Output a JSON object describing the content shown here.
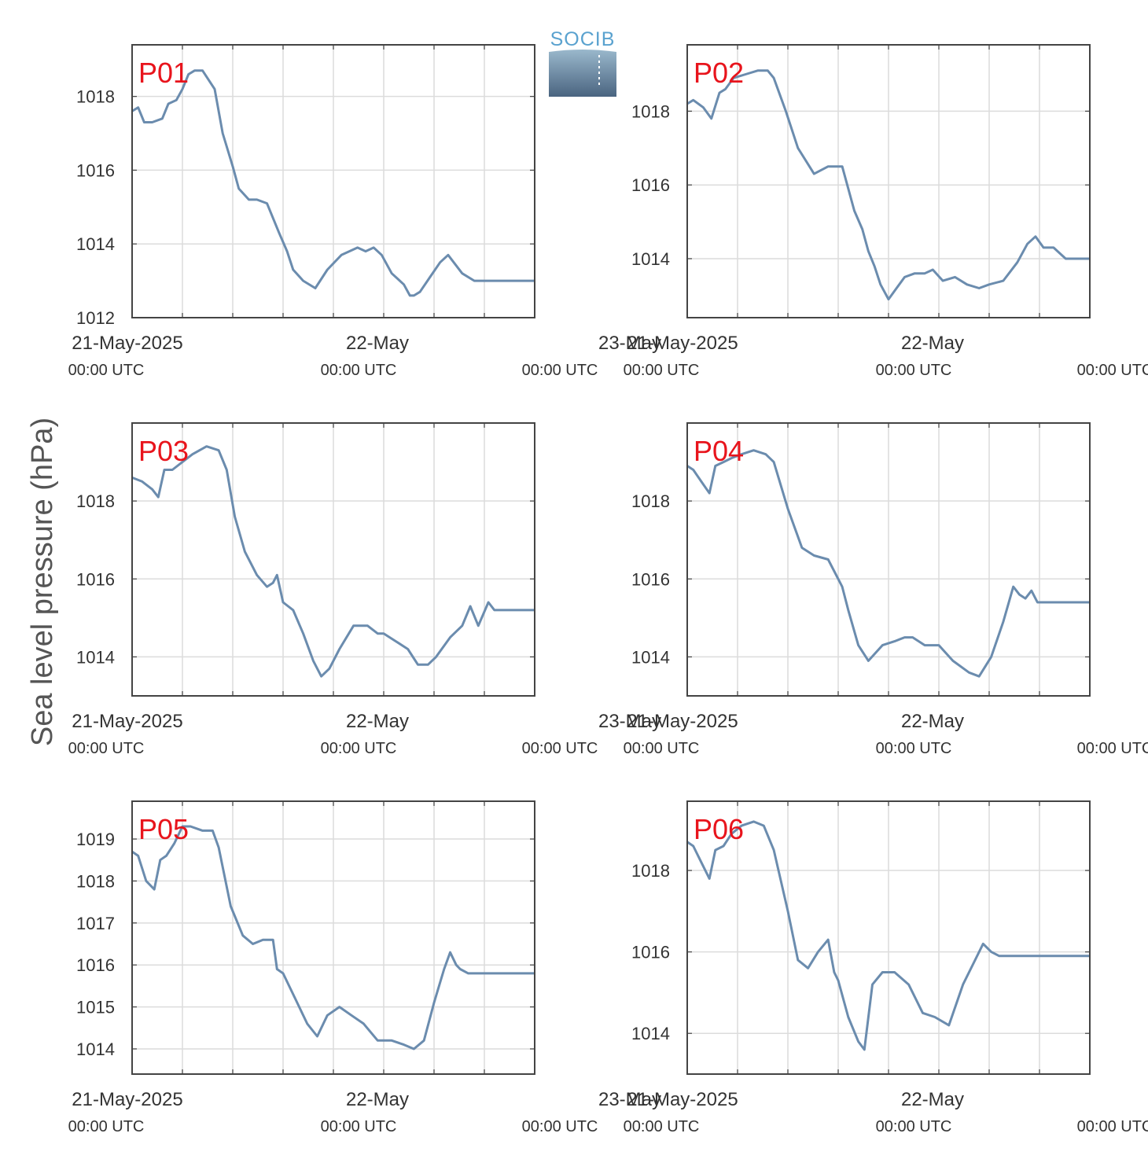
{
  "ylabel": "Sea level pressure (hPa)",
  "logo_text": "SOCIB",
  "colors": {
    "line": "#6b8cae",
    "label": "#e8141c",
    "grid": "#dcdcdc",
    "axis": "#444444",
    "text": "#333333"
  },
  "x_ticks": [
    {
      "top": "21-May-2025",
      "bottom": "00:00 UTC"
    },
    {
      "top": "22-May",
      "bottom": "00:00 UTC"
    },
    {
      "top": "23-May",
      "bottom": "00:00 UTC"
    }
  ],
  "chart_data": [
    {
      "type": "line",
      "label": "P01",
      "xlim": [
        -0.25,
        1.75
      ],
      "ylim": [
        1012,
        1019.4
      ],
      "yticks": [
        1012,
        1014,
        1016,
        1018
      ],
      "x": [
        -0.25,
        -0.22,
        -0.19,
        -0.15,
        -0.1,
        -0.07,
        -0.03,
        0,
        0.03,
        0.06,
        0.1,
        0.16,
        0.2,
        0.25,
        0.28,
        0.33,
        0.37,
        0.42,
        0.48,
        0.52,
        0.55,
        0.6,
        0.66,
        0.72,
        0.79,
        0.87,
        0.91,
        0.95,
        0.99,
        1.04,
        1.1,
        1.13,
        1.15,
        1.18,
        1.23,
        1.28,
        1.32,
        1.39,
        1.45,
        1.5,
        1.55,
        1.58,
        1.62,
        1.65,
        1.68,
        1.71,
        1.75
      ],
      "y": [
        1017.6,
        1017.7,
        1017.3,
        1017.3,
        1017.4,
        1017.8,
        1017.9,
        1018.2,
        1018.6,
        1018.7,
        1018.7,
        1018.2,
        1017.0,
        1016.1,
        1015.5,
        1015.2,
        1015.2,
        1015.1,
        1014.3,
        1013.8,
        1013.3,
        1013.0,
        1012.8,
        1013.3,
        1013.7,
        1013.9,
        1013.8,
        1013.9,
        1013.7,
        1013.2,
        1012.9,
        1012.6,
        1012.6,
        1012.7,
        1013.1,
        1013.5,
        1013.7,
        1013.2,
        1013.0,
        1013.0,
        1013.0,
        1013.0,
        1013.0,
        1013.0,
        1013.0,
        1013.0,
        1013.0
      ]
    },
    {
      "type": "line",
      "label": "P02",
      "xlim": [
        -0.25,
        1.75
      ],
      "ylim": [
        1012.4,
        1019.8
      ],
      "yticks": [
        1014,
        1016,
        1018
      ],
      "x": [
        -0.25,
        -0.22,
        -0.17,
        -0.13,
        -0.09,
        -0.06,
        -0.02,
        0.04,
        0.1,
        0.15,
        0.18,
        0.24,
        0.3,
        0.38,
        0.45,
        0.52,
        0.58,
        0.62,
        0.65,
        0.68,
        0.71,
        0.75,
        0.79,
        0.83,
        0.88,
        0.93,
        0.97,
        1.02,
        1.08,
        1.14,
        1.2,
        1.25,
        1.32,
        1.39,
        1.44,
        1.48,
        1.52,
        1.57,
        1.63,
        1.66,
        1.69,
        1.72,
        1.75
      ],
      "y": [
        1018.2,
        1018.3,
        1018.1,
        1017.8,
        1018.5,
        1018.6,
        1018.9,
        1019.0,
        1019.1,
        1019.1,
        1018.9,
        1018.0,
        1017.0,
        1016.3,
        1016.5,
        1016.5,
        1015.3,
        1014.8,
        1014.2,
        1013.8,
        1013.3,
        1012.9,
        1013.2,
        1013.5,
        1013.6,
        1013.6,
        1013.7,
        1013.4,
        1013.5,
        1013.3,
        1013.2,
        1013.3,
        1013.4,
        1013.9,
        1014.4,
        1014.6,
        1014.3,
        1014.3,
        1014.0,
        1014.0,
        1014.0,
        1014.0,
        1014.0
      ]
    },
    {
      "type": "line",
      "label": "P03",
      "xlim": [
        -0.25,
        1.75
      ],
      "ylim": [
        1013,
        1020
      ],
      "yticks": [
        1014,
        1016,
        1018
      ],
      "x": [
        -0.25,
        -0.2,
        -0.15,
        -0.12,
        -0.09,
        -0.05,
        0,
        0.05,
        0.12,
        0.18,
        0.22,
        0.26,
        0.31,
        0.37,
        0.42,
        0.45,
        0.47,
        0.5,
        0.55,
        0.6,
        0.65,
        0.69,
        0.73,
        0.78,
        0.85,
        0.92,
        0.97,
        1.0,
        1.06,
        1.12,
        1.17,
        1.22,
        1.26,
        1.33,
        1.39,
        1.43,
        1.47,
        1.52,
        1.55,
        1.6,
        1.64,
        1.67,
        1.7,
        1.73,
        1.75
      ],
      "y": [
        1018.6,
        1018.5,
        1018.3,
        1018.1,
        1018.8,
        1018.8,
        1019.0,
        1019.2,
        1019.4,
        1019.3,
        1018.8,
        1017.6,
        1016.7,
        1016.1,
        1015.8,
        1015.9,
        1016.1,
        1015.4,
        1015.2,
        1014.6,
        1013.9,
        1013.5,
        1013.7,
        1014.2,
        1014.8,
        1014.8,
        1014.6,
        1014.6,
        1014.4,
        1014.2,
        1013.8,
        1013.8,
        1014.0,
        1014.5,
        1014.8,
        1015.3,
        1014.8,
        1015.4,
        1015.2,
        1015.2,
        1015.2,
        1015.2,
        1015.2,
        1015.2,
        1015.2
      ]
    },
    {
      "type": "line",
      "label": "P04",
      "xlim": [
        -0.25,
        1.75
      ],
      "ylim": [
        1013,
        1020
      ],
      "yticks": [
        1014,
        1016,
        1018
      ],
      "x": [
        -0.25,
        -0.22,
        -0.18,
        -0.14,
        -0.11,
        -0.07,
        -0.03,
        0.02,
        0.08,
        0.14,
        0.18,
        0.25,
        0.32,
        0.38,
        0.45,
        0.52,
        0.55,
        0.6,
        0.65,
        0.72,
        0.78,
        0.83,
        0.87,
        0.93,
        1.0,
        1.07,
        1.15,
        1.2,
        1.26,
        1.32,
        1.37,
        1.4,
        1.43,
        1.46,
        1.49,
        1.52,
        1.55,
        1.58,
        1.61,
        1.64,
        1.67,
        1.7,
        1.73,
        1.75
      ],
      "y": [
        1018.9,
        1018.8,
        1018.5,
        1018.2,
        1018.9,
        1019.0,
        1019.1,
        1019.2,
        1019.3,
        1019.2,
        1019.0,
        1017.8,
        1016.8,
        1016.6,
        1016.5,
        1015.8,
        1015.2,
        1014.3,
        1013.9,
        1014.3,
        1014.4,
        1014.5,
        1014.5,
        1014.3,
        1014.3,
        1013.9,
        1013.6,
        1013.5,
        1014.0,
        1014.9,
        1015.8,
        1015.6,
        1015.5,
        1015.7,
        1015.4,
        1015.4,
        1015.4,
        1015.4,
        1015.4,
        1015.4,
        1015.4,
        1015.4,
        1015.4,
        1015.4
      ]
    },
    {
      "type": "line",
      "label": "P05",
      "xlim": [
        -0.25,
        1.75
      ],
      "ylim": [
        1013.4,
        1019.9
      ],
      "yticks": [
        1014,
        1015,
        1016,
        1017,
        1018,
        1019
      ],
      "x": [
        -0.25,
        -0.22,
        -0.18,
        -0.14,
        -0.11,
        -0.08,
        -0.04,
        0,
        0.04,
        0.1,
        0.15,
        0.18,
        0.24,
        0.3,
        0.35,
        0.4,
        0.45,
        0.47,
        0.5,
        0.56,
        0.62,
        0.67,
        0.72,
        0.78,
        0.84,
        0.9,
        0.97,
        1.04,
        1.1,
        1.15,
        1.2,
        1.25,
        1.3,
        1.33,
        1.36,
        1.38,
        1.42,
        1.45,
        1.48,
        1.52,
        1.55,
        1.6,
        1.64,
        1.68,
        1.72,
        1.75
      ],
      "y": [
        1018.7,
        1018.6,
        1018.0,
        1017.8,
        1018.5,
        1018.6,
        1018.9,
        1019.3,
        1019.3,
        1019.2,
        1019.2,
        1018.8,
        1017.4,
        1016.7,
        1016.5,
        1016.6,
        1016.6,
        1015.9,
        1015.8,
        1015.2,
        1014.6,
        1014.3,
        1014.8,
        1015.0,
        1014.8,
        1014.6,
        1014.2,
        1014.2,
        1014.1,
        1014.0,
        1014.2,
        1015.1,
        1015.9,
        1016.3,
        1016.0,
        1015.9,
        1015.8,
        1015.8,
        1015.8,
        1015.8,
        1015.8,
        1015.8,
        1015.8,
        1015.8,
        1015.8,
        1015.8
      ]
    },
    {
      "type": "line",
      "label": "P06",
      "xlim": [
        -0.25,
        1.75
      ],
      "ylim": [
        1013,
        1019.7
      ],
      "yticks": [
        1014,
        1016,
        1018
      ],
      "x": [
        -0.25,
        -0.22,
        -0.18,
        -0.14,
        -0.11,
        -0.07,
        -0.03,
        0.02,
        0.08,
        0.13,
        0.18,
        0.25,
        0.3,
        0.35,
        0.4,
        0.45,
        0.48,
        0.5,
        0.55,
        0.6,
        0.63,
        0.67,
        0.72,
        0.78,
        0.85,
        0.92,
        0.98,
        1.05,
        1.12,
        1.18,
        1.22,
        1.26,
        1.3,
        1.33,
        1.36,
        1.4,
        1.44,
        1.47,
        1.51,
        1.55,
        1.6,
        1.64,
        1.68,
        1.72,
        1.75
      ],
      "y": [
        1018.7,
        1018.6,
        1018.2,
        1017.8,
        1018.5,
        1018.6,
        1018.9,
        1019.1,
        1019.2,
        1019.1,
        1018.5,
        1017.0,
        1015.8,
        1015.6,
        1016.0,
        1016.3,
        1015.5,
        1015.3,
        1014.4,
        1013.8,
        1013.6,
        1015.2,
        1015.5,
        1015.5,
        1015.2,
        1014.5,
        1014.4,
        1014.2,
        1015.2,
        1015.8,
        1016.2,
        1016.0,
        1015.9,
        1015.9,
        1015.9,
        1015.9,
        1015.9,
        1015.9,
        1015.9,
        1015.9,
        1015.9,
        1015.9,
        1015.9,
        1015.9,
        1015.9
      ]
    }
  ]
}
